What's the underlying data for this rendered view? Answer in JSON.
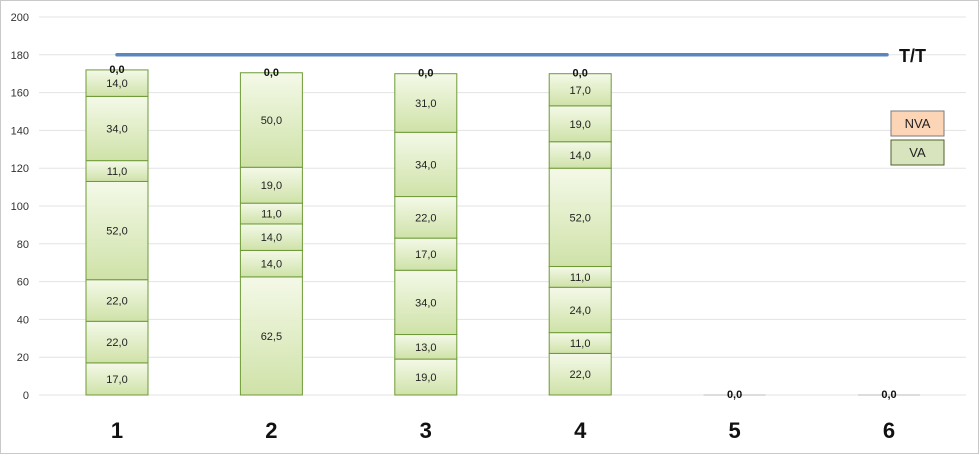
{
  "chart_data": {
    "type": "bar",
    "stacked": true,
    "categories": [
      "1",
      "2",
      "3",
      "4",
      "5",
      "6"
    ],
    "ylim": [
      0,
      200
    ],
    "yticks": [
      0,
      20,
      40,
      60,
      80,
      100,
      120,
      140,
      160,
      180,
      200
    ],
    "grid": true,
    "stacks": [
      {
        "category": "1",
        "segments": [
          "17,0",
          "22,0",
          "22,0",
          "52,0",
          "11,0",
          "34,0",
          "14,0"
        ],
        "values": [
          17,
          22,
          22,
          52,
          11,
          34,
          14
        ],
        "top_label": "0,0"
      },
      {
        "category": "2",
        "segments": [
          "62,5",
          "14,0",
          "14,0",
          "11,0",
          "19,0",
          "50,0"
        ],
        "values": [
          62.5,
          14,
          14,
          11,
          19,
          50
        ],
        "top_label": "0,0"
      },
      {
        "category": "3",
        "segments": [
          "19,0",
          "13,0",
          "34,0",
          "17,0",
          "22,0",
          "34,0",
          "31,0"
        ],
        "values": [
          19,
          13,
          34,
          17,
          22,
          34,
          31
        ],
        "top_label": "0,0"
      },
      {
        "category": "4",
        "segments": [
          "22,0",
          "11,0",
          "24,0",
          "11,0",
          "52,0",
          "14,0",
          "19,0",
          "17,0"
        ],
        "values": [
          22,
          11,
          24,
          11,
          52,
          14,
          19,
          17
        ],
        "top_label": "0,0"
      },
      {
        "category": "5",
        "segments": [],
        "values": [],
        "top_label": "0,0"
      },
      {
        "category": "6",
        "segments": [],
        "values": [],
        "top_label": "0,0"
      }
    ],
    "reference_line": {
      "label": "T/T",
      "value": 180,
      "color": "#5b86bd"
    },
    "legend": {
      "placement": "right",
      "items": [
        {
          "name": "NVA",
          "color": "#fbd5b5",
          "border": "#7a7a7a"
        },
        {
          "name": "VA",
          "color": "#d7e4bd",
          "border": "#4f6228"
        }
      ]
    },
    "colors": {
      "bar_fill_top": "#f4f9e8",
      "bar_fill_bottom": "#cfe2a8",
      "bar_border": "#6e9a37",
      "grid": "#e3e3e3"
    }
  }
}
